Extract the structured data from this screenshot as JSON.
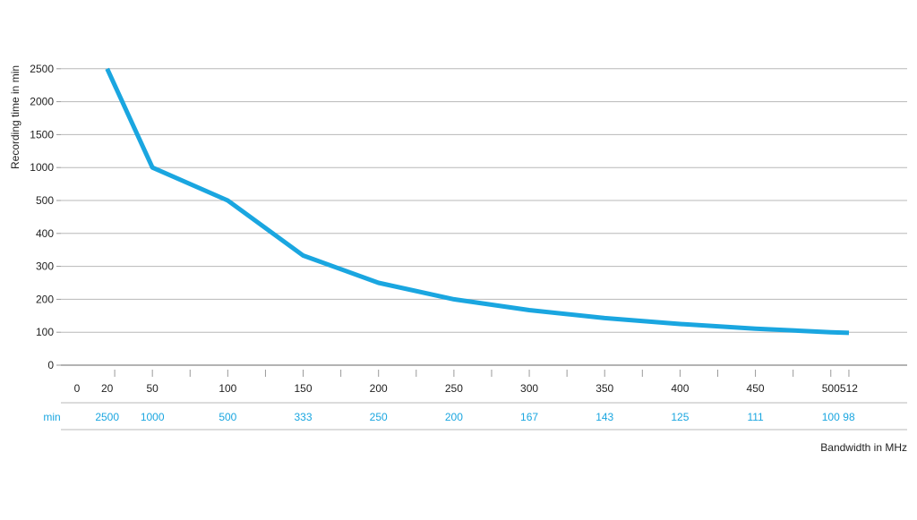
{
  "chart_data": {
    "type": "line",
    "title": "",
    "xlabel": "Bandwidth in MHz",
    "ylabel": "Recording time in min",
    "y_ticks": [
      "0",
      "100",
      "200",
      "300",
      "400",
      "500",
      "1000",
      "1500",
      "2000",
      "2500"
    ],
    "y_scale": "piecewise: 0–500 linear in steps of 100, 500–2500 linear in steps of 500 (equal tick spacing)",
    "x_ticks": [
      0,
      20,
      50,
      100,
      150,
      200,
      250,
      300,
      350,
      400,
      450,
      500,
      512
    ],
    "x_range": [
      0,
      512
    ],
    "grid": "horizontal",
    "legend": "none",
    "series": [
      {
        "color": "#1aa6e0",
        "x": [
          20,
          50,
          100,
          150,
          200,
          250,
          300,
          350,
          400,
          450,
          500,
          512
        ],
        "values": [
          2500,
          1000,
          500,
          333,
          250,
          200,
          167,
          143,
          125,
          111,
          100,
          98
        ]
      }
    ],
    "value_row": {
      "label": "min",
      "x": [
        20,
        50,
        100,
        150,
        200,
        250,
        300,
        350,
        400,
        450,
        500,
        512
      ],
      "labels": [
        "2500",
        "1000",
        "500",
        "333",
        "250",
        "200",
        "167",
        "143",
        "125",
        "111",
        "100",
        "98"
      ]
    },
    "colors": {
      "line": "#1aa6e0",
      "value_text": "#1aa6e0",
      "grid": "#b8b8b8",
      "axis": "#9a9a9a",
      "text": "#222222"
    }
  }
}
